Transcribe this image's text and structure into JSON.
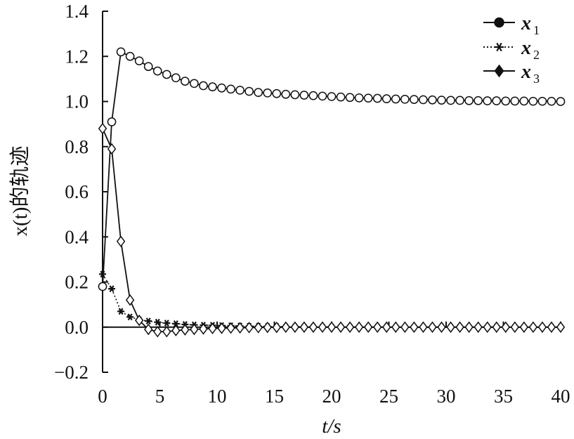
{
  "chart_data": {
    "type": "line",
    "xlabel": "t/s",
    "ylabel": "x(t)的轨迹",
    "xlim": [
      0,
      40
    ],
    "ylim": [
      -0.2,
      1.4
    ],
    "xticks": [
      "0",
      "5",
      "10",
      "15",
      "20",
      "25",
      "30",
      "35",
      "40"
    ],
    "yticks": [
      "−0.2",
      "0.0",
      "0.2",
      "0.4",
      "0.6",
      "0.8",
      "1.0",
      "1.2",
      "1.4"
    ],
    "grid": false,
    "legend_position": "top-right",
    "x": [
      0,
      0.8,
      1.6,
      2.4,
      3.2,
      4.0,
      4.8,
      5.6,
      6.4,
      7.2,
      8.0,
      8.8,
      9.6,
      10.4,
      11.2,
      12.0,
      12.8,
      13.6,
      14.4,
      15.2,
      16.0,
      16.8,
      17.6,
      18.4,
      19.2,
      20.0,
      20.8,
      21.6,
      22.4,
      23.2,
      24.0,
      24.8,
      25.6,
      26.4,
      27.2,
      28.0,
      28.8,
      29.6,
      30.4,
      31.2,
      32.0,
      32.8,
      33.6,
      34.4,
      35.2,
      36.0,
      36.8,
      37.6,
      38.4,
      39.2,
      40.0
    ],
    "series": [
      {
        "name": "x1",
        "marker": "circle",
        "line": "solid",
        "values": [
          0.18,
          0.91,
          1.22,
          1.2,
          1.18,
          1.155,
          1.135,
          1.12,
          1.105,
          1.09,
          1.08,
          1.07,
          1.065,
          1.06,
          1.055,
          1.05,
          1.045,
          1.04,
          1.038,
          1.035,
          1.032,
          1.03,
          1.028,
          1.026,
          1.024,
          1.022,
          1.02,
          1.018,
          1.016,
          1.015,
          1.014,
          1.012,
          1.011,
          1.01,
          1.009,
          1.008,
          1.007,
          1.006,
          1.005,
          1.005,
          1.004,
          1.004,
          1.003,
          1.003,
          1.002,
          1.002,
          1.002,
          1.001,
          1.001,
          1.001,
          1.0
        ]
      },
      {
        "name": "x2",
        "marker": "star",
        "line": "dotted",
        "values": [
          0.235,
          0.17,
          0.07,
          0.045,
          0.033,
          0.027,
          0.022,
          0.018,
          0.015,
          0.012,
          0.01,
          0.009,
          0.008,
          0.007,
          0.006,
          0.005,
          0.004,
          0.004,
          0.003,
          0.003,
          0.002,
          0.002,
          0.002,
          0.001,
          0.001,
          0.001,
          0.001,
          0.001,
          0,
          0,
          0,
          0,
          0,
          0,
          0,
          0,
          0,
          0,
          0,
          0,
          0,
          0,
          0,
          0,
          0,
          0,
          0,
          0,
          0,
          0,
          0
        ]
      },
      {
        "name": "x3",
        "marker": "diamond",
        "line": "solid",
        "values": [
          0.88,
          0.79,
          0.38,
          0.12,
          0.03,
          -0.01,
          -0.02,
          -0.02,
          -0.015,
          -0.012,
          -0.01,
          -0.008,
          -0.006,
          -0.005,
          -0.004,
          -0.003,
          -0.002,
          -0.002,
          -0.001,
          -0.001,
          0,
          0,
          0,
          0,
          0,
          0,
          0,
          0,
          0,
          0,
          0,
          0,
          0,
          0,
          0,
          0,
          0,
          0,
          0,
          0,
          0,
          0,
          0,
          0,
          0,
          0,
          0,
          0,
          0,
          0,
          0
        ]
      }
    ],
    "legend": [
      {
        "var": "x",
        "sub": "1",
        "marker": "circle",
        "line": "solid"
      },
      {
        "var": "x",
        "sub": "2",
        "marker": "star",
        "line": "dotted"
      },
      {
        "var": "x",
        "sub": "3",
        "marker": "diamond",
        "line": "solid"
      }
    ]
  }
}
